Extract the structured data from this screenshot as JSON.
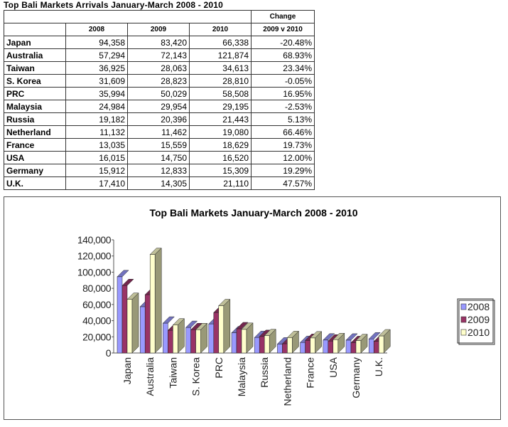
{
  "table": {
    "title": "Top Bali Markets Arrivals January-March 2008 - 2010",
    "header_top": {
      "change_label": "Change"
    },
    "header": [
      "",
      "2008",
      "2009",
      "2010",
      "2009 v 2010"
    ],
    "rows": [
      [
        "Japan",
        "94,358",
        "83,420",
        "66,338",
        "-20.48%"
      ],
      [
        "Australia",
        "57,294",
        "72,143",
        "121,874",
        "68.93%"
      ],
      [
        "Taiwan",
        "36,925",
        "28,063",
        "34,613",
        "23.34%"
      ],
      [
        "S. Korea",
        "31,609",
        "28,823",
        "28,810",
        "-0.05%"
      ],
      [
        "PRC",
        "35,994",
        "50,029",
        "58,508",
        "16.95%"
      ],
      [
        "Malaysia",
        "24,984",
        "29,954",
        "29,195",
        "-2.53%"
      ],
      [
        "Russia",
        "19,182",
        "20,396",
        "21,443",
        "5.13%"
      ],
      [
        "Netherland",
        "11,132",
        "11,462",
        "19,080",
        "66.46%"
      ],
      [
        "France",
        "13,035",
        "15,559",
        "18,629",
        "19.73%"
      ],
      [
        "USA",
        "16,015",
        "14,750",
        "16,520",
        "12.00%"
      ],
      [
        "Germany",
        "15,912",
        "12,833",
        "15,309",
        "19.29%"
      ],
      [
        "U.K.",
        "17,410",
        "14,305",
        "21,110",
        "47.57%"
      ]
    ]
  },
  "chart_data": {
    "type": "bar",
    "title": "Top Bali Markets January-March 2008 - 2010",
    "xlabel": "",
    "ylabel": "",
    "ylim": [
      0,
      140000
    ],
    "yticks": [
      "0",
      "20,000",
      "40,000",
      "60,000",
      "80,000",
      "100,000",
      "120,000",
      "140,000"
    ],
    "categories": [
      "Japan",
      "Australia",
      "Taiwan",
      "S. Korea",
      "PRC",
      "Malaysia",
      "Russia",
      "Netherland",
      "France",
      "USA",
      "Germany",
      "U.K."
    ],
    "series": [
      {
        "name": "2008",
        "color": "#9999ff",
        "values": [
          94358,
          57294,
          36925,
          31609,
          35994,
          24984,
          19182,
          11132,
          13035,
          16015,
          15912,
          17410
        ]
      },
      {
        "name": "2009",
        "color": "#993366",
        "values": [
          83420,
          72143,
          28063,
          28823,
          50029,
          29954,
          20396,
          11462,
          15559,
          14750,
          12833,
          14305
        ]
      },
      {
        "name": "2010",
        "color": "#ffffcc",
        "values": [
          66338,
          121874,
          34613,
          28810,
          58508,
          29195,
          21443,
          19080,
          18629,
          16520,
          15309,
          21110
        ]
      }
    ],
    "legend_position": "right",
    "grid": false,
    "style": "3d-clustered-column"
  }
}
